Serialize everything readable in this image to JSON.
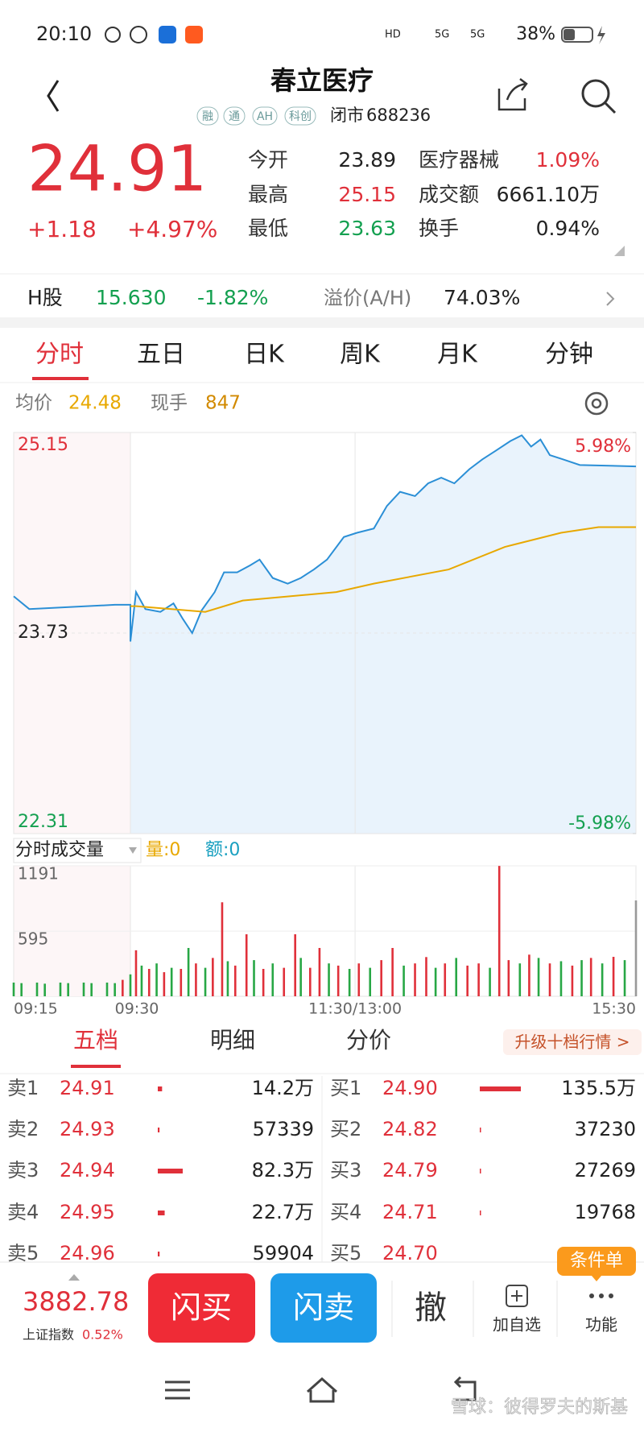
{
  "status_bar": {
    "time": "20:10",
    "network": [
      "HD",
      "5G",
      "5G"
    ],
    "battery": "38%"
  },
  "header": {
    "title": "春立医疗",
    "tags": [
      "融",
      "通",
      "AH",
      "科创"
    ],
    "status": "闭市",
    "code": "688236"
  },
  "quote": {
    "price": "24.91",
    "change": "+1.18",
    "change_pct": "+4.97%",
    "stats": [
      [
        "今开",
        "23.89"
      ],
      [
        "最高",
        "25.15"
      ],
      [
        "最低",
        "23.63"
      ],
      [
        "医疗器械",
        "1.09%"
      ],
      [
        "成交额",
        "6661.10万"
      ],
      [
        "换手",
        "0.94%"
      ]
    ]
  },
  "h_share": {
    "label": "H股",
    "price": "15.630",
    "change_pct": "-1.82%",
    "premium_label": "溢价(A/H)",
    "premium": "74.03%"
  },
  "tabs": [
    "分时",
    "五日",
    "日K",
    "周K",
    "月K",
    "分钟"
  ],
  "intraday": {
    "avg_label": "均价",
    "avg": "24.48",
    "last_vol_label": "现手",
    "last_vol": "847",
    "chart": {
      "type": "line",
      "xlim": [
        -15,
        270
      ],
      "xticks": [
        {
          "value": -15,
          "label": "09:15"
        },
        {
          "value": 0,
          "label": "09:30"
        },
        {
          "value": 120,
          "label": "11:30/13:00"
        },
        {
          "value": 270,
          "label": "15:30"
        }
      ],
      "ylim": [
        22.31,
        25.15
      ],
      "yticks": [
        25.15,
        23.73,
        22.31
      ],
      "y2lim": [
        -5.98,
        5.98
      ],
      "y2ticks": [
        {
          "value": 5.98,
          "label": "5.98%"
        },
        {
          "value": -5.98,
          "label": "-5.98%"
        }
      ],
      "series": [
        {
          "color": "#2b8fd6",
          "x": [
            -15,
            -13,
            -2,
            0,
            0,
            3,
            8,
            16,
            23,
            28,
            33,
            38,
            45,
            50,
            57,
            64,
            69,
            76,
            84,
            91,
            98,
            105,
            114,
            121,
            130,
            137,
            144,
            152,
            159,
            166,
            173,
            181,
            188,
            195,
            203,
            209,
            214,
            219,
            224,
            231,
            240,
            270
          ],
          "values": [
            23.99,
            23.9,
            23.93,
            23.93,
            23.67,
            24.02,
            23.9,
            23.88,
            23.94,
            23.83,
            23.73,
            23.89,
            24.02,
            24.16,
            24.16,
            24.21,
            24.25,
            24.12,
            24.08,
            24.12,
            24.18,
            24.25,
            24.41,
            24.44,
            24.47,
            24.63,
            24.73,
            24.7,
            24.79,
            24.83,
            24.79,
            24.89,
            24.96,
            25.02,
            25.09,
            25.13,
            25.05,
            25.1,
            24.99,
            24.96,
            24.92,
            24.91
          ]
        },
        {
          "color": "#e8a800",
          "x": [
            0,
            3,
            40,
            60,
            110,
            130,
            170,
            200,
            230,
            250,
            270
          ],
          "values": [
            23.92,
            23.92,
            23.88,
            23.96,
            24.02,
            24.08,
            24.18,
            24.34,
            24.44,
            24.48,
            24.48
          ]
        }
      ]
    },
    "volume": {
      "type": "bar",
      "title": "分时成交量",
      "qty": "量:0",
      "amount": "额:0",
      "ylim": [
        0,
        1191
      ],
      "yticks": [
        1191,
        595
      ],
      "x": [
        -15,
        -14,
        -12,
        -11,
        -9,
        -8,
        -6,
        -5,
        -3,
        -2,
        -1,
        0,
        3,
        6,
        10,
        14,
        18,
        22,
        27,
        31,
        35,
        40,
        44,
        49,
        52,
        56,
        62,
        66,
        71,
        76,
        82,
        88,
        91,
        96,
        101,
        106,
        111,
        117,
        122,
        128,
        134,
        140,
        146,
        152,
        158,
        163,
        168,
        174,
        180,
        186,
        192,
        197,
        202,
        208,
        213,
        218,
        224,
        230,
        236,
        241,
        246,
        252,
        258,
        264,
        270
      ],
      "values": [
        125,
        120,
        125,
        115,
        125,
        120,
        125,
        120,
        125,
        120,
        150,
        200,
        420,
        280,
        250,
        300,
        220,
        260,
        250,
        441,
        300,
        260,
        350,
        858,
        320,
        280,
        566,
        330,
        250,
        300,
        260,
        566,
        350,
        260,
        441,
        300,
        280,
        250,
        300,
        260,
        330,
        441,
        280,
        300,
        358,
        260,
        300,
        350,
        280,
        300,
        260,
        1190,
        330,
        300,
        380,
        350,
        300,
        320,
        280,
        330,
        350,
        300,
        360,
        330,
        875
      ],
      "colors": [
        "#28a745",
        "#28a745",
        "#28a745",
        "#28a745",
        "#28a745",
        "#28a745",
        "#28a745",
        "#28a745",
        "#28a745",
        "#28a745",
        "#e0303a",
        "#28a745",
        "#e0303a",
        "#28a745",
        "#e0303a",
        "#28a745",
        "#e0303a",
        "#28a745",
        "#e0303a",
        "#28a745",
        "#e0303a",
        "#28a745",
        "#e0303a",
        "#e0303a",
        "#28a745",
        "#e0303a",
        "#e0303a",
        "#28a745",
        "#e0303a",
        "#28a745",
        "#e0303a",
        "#e0303a",
        "#28a745",
        "#e0303a",
        "#e0303a",
        "#28a745",
        "#e0303a",
        "#28a745",
        "#e0303a",
        "#28a745",
        "#e0303a",
        "#e0303a",
        "#28a745",
        "#e0303a",
        "#e0303a",
        "#28a745",
        "#e0303a",
        "#28a745",
        "#e0303a",
        "#e0303a",
        "#28a745",
        "#e0303a",
        "#e0303a",
        "#28a745",
        "#e0303a",
        "#28a745",
        "#e0303a",
        "#28a745",
        "#e0303a",
        "#28a745",
        "#e0303a",
        "#28a745",
        "#e0303a",
        "#28a745",
        "#999999"
      ]
    }
  },
  "order_book": {
    "tabs": [
      "五档",
      "明细",
      "分价"
    ],
    "upgrade": "升级十档行情 >",
    "asks": [
      {
        "label": "卖1",
        "price": "24.91",
        "volume": {
          "value": 142000,
          "label": "14.2万"
        }
      },
      {
        "label": "卖2",
        "price": "24.93",
        "volume": 57339
      },
      {
        "label": "卖3",
        "price": "24.94",
        "volume": {
          "value": 823000,
          "label": "82.3万"
        }
      },
      {
        "label": "卖4",
        "price": "24.95",
        "volume": {
          "value": 227000,
          "label": "22.7万"
        }
      },
      {
        "label": "卖5",
        "price": "24.96",
        "volume": 59904
      }
    ],
    "bids": [
      {
        "label": "买1",
        "price": "24.90",
        "volume": {
          "value": 1355000,
          "label": "135.5万"
        }
      },
      {
        "label": "买2",
        "price": "24.82",
        "volume": 37230
      },
      {
        "label": "买3",
        "price": "24.79",
        "volume": 27269
      },
      {
        "label": "买4",
        "price": "24.71",
        "volume": 19768
      },
      {
        "label": "买5",
        "price": "24.70"
      }
    ]
  },
  "bottom_bar": {
    "index_value": "3882.78",
    "index_name": "上证指数",
    "index_change": "0.52%",
    "buy": "闪买",
    "sell": "闪卖",
    "cancel": "撤",
    "add_watch": "加自选",
    "functions": "功能",
    "conditional": "条件单"
  },
  "watermark": "雪球：彼得罗夫的斯基"
}
